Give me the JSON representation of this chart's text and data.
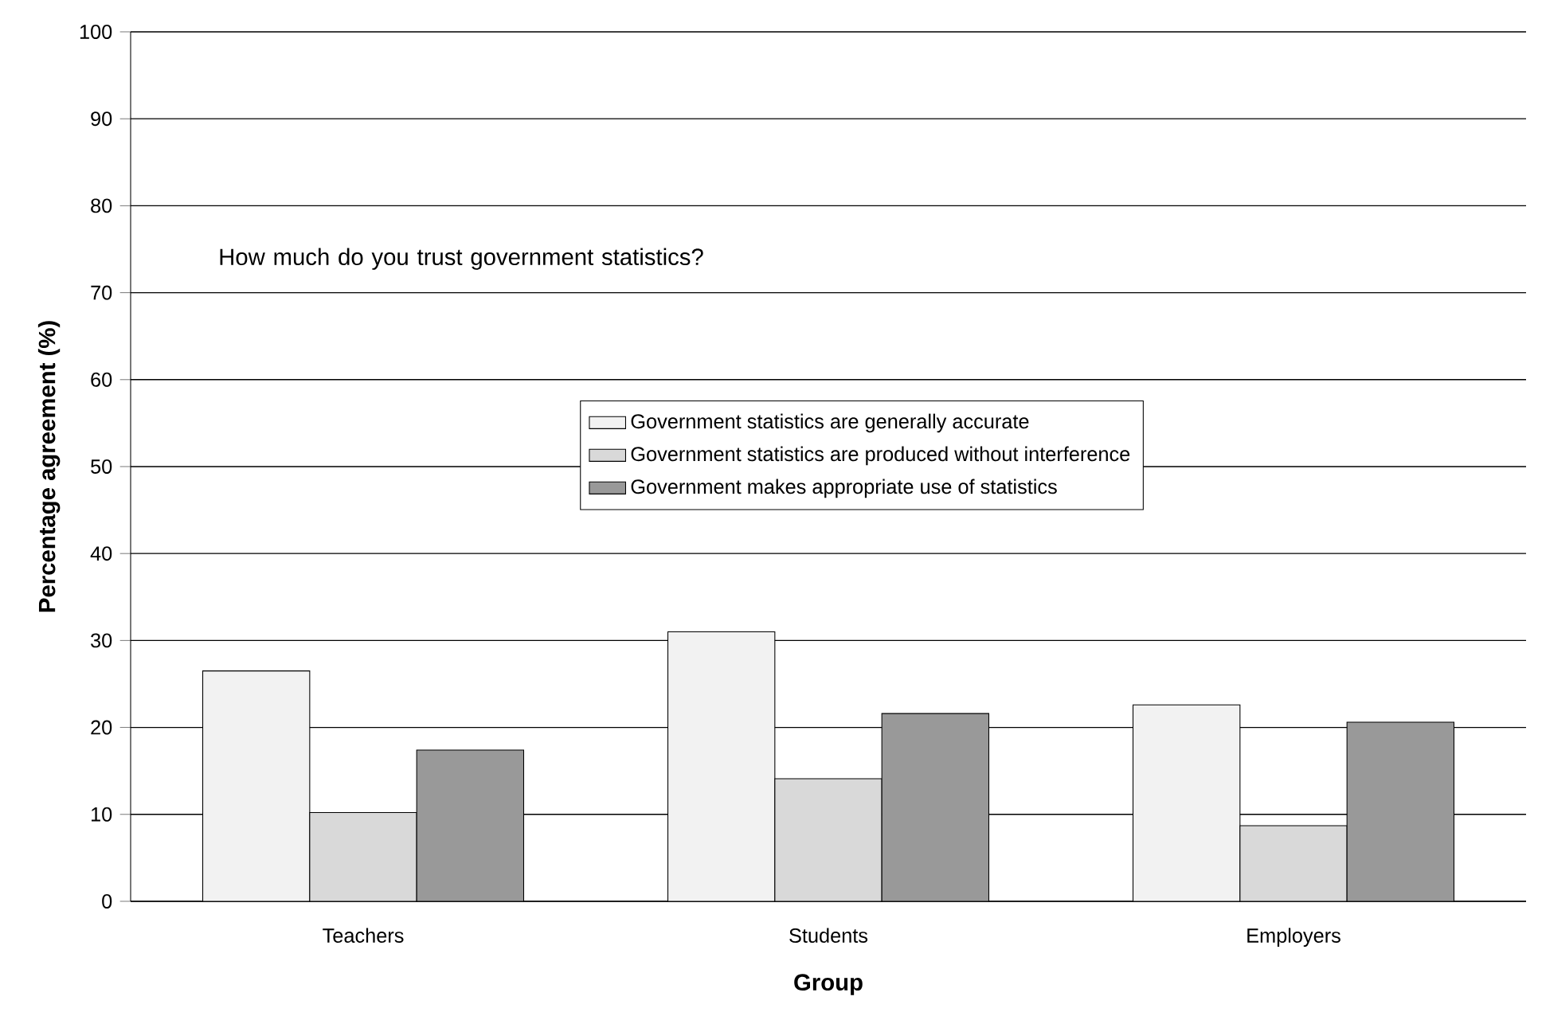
{
  "chart_data": {
    "type": "bar",
    "title": "How much do you trust government statistics?",
    "xlabel": "Group",
    "ylabel": "Percentage agreement (%)",
    "categories": [
      "Teachers",
      "Students",
      "Employers"
    ],
    "series": [
      {
        "name": "Government statistics are generally accurate",
        "color": "#f2f2f2",
        "values": [
          26.5,
          31.0,
          22.6
        ]
      },
      {
        "name": "Government statistics are produced without interference",
        "color": "#d9d9d9",
        "values": [
          10.2,
          14.1,
          8.7
        ]
      },
      {
        "name": "Government makes appropriate use of statistics",
        "color": "#999999",
        "values": [
          17.4,
          21.6,
          20.6
        ]
      }
    ],
    "ylim": [
      0,
      100
    ],
    "yticks": [
      0,
      10,
      20,
      30,
      40,
      50,
      60,
      70,
      80,
      90,
      100
    ],
    "grid": "y",
    "legend": "center"
  }
}
